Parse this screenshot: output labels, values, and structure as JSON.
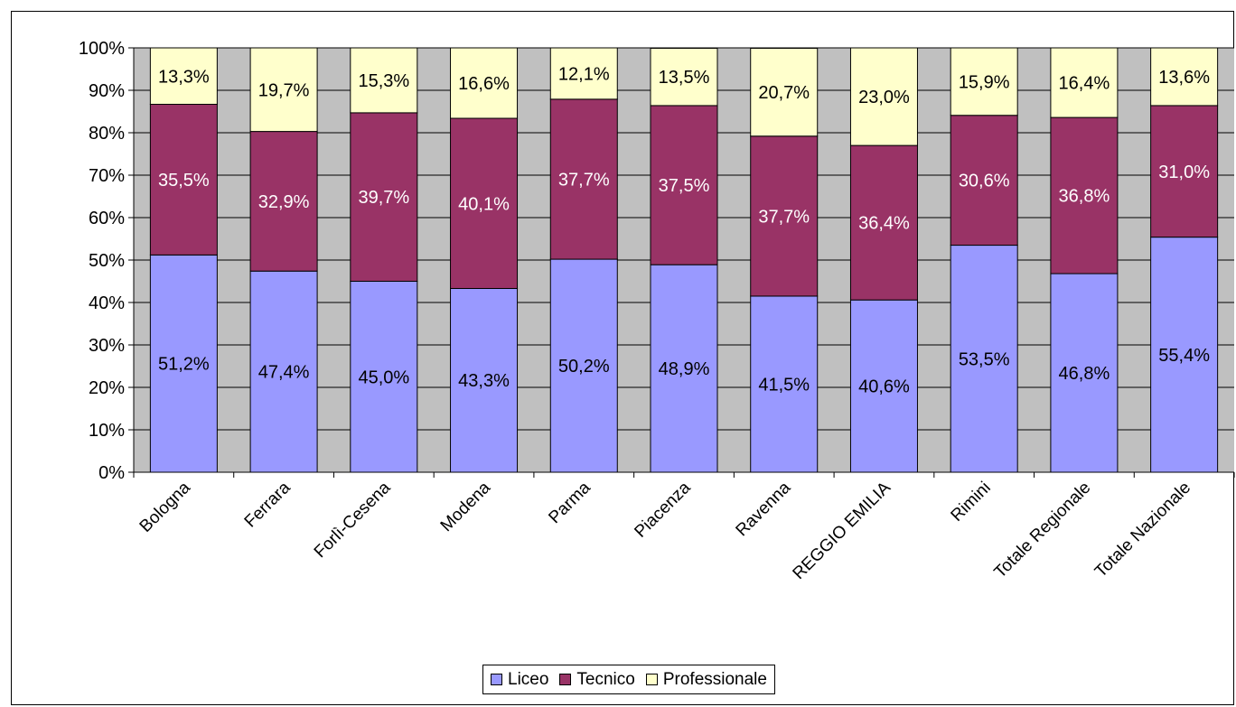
{
  "chart_data": {
    "type": "bar",
    "stacked": true,
    "percent_stacked": true,
    "categories": [
      "Bologna",
      "Ferrara",
      "Forlì-Cesena",
      "Modena",
      "Parma",
      "Piacenza",
      "Ravenna",
      "REGGIO EMILIA",
      "Rimini",
      "Totale Regionale",
      "Totale Nazionale"
    ],
    "series": [
      {
        "name": "Liceo",
        "color": "#9999ff",
        "label_color": "#000000",
        "values": [
          51.2,
          47.4,
          45.0,
          43.3,
          50.2,
          48.9,
          41.5,
          40.6,
          53.5,
          46.8,
          55.4
        ],
        "labels": [
          "51,2%",
          "47,4%",
          "45,0%",
          "43,3%",
          "50,2%",
          "48,9%",
          "41,5%",
          "40,6%",
          "53,5%",
          "46,8%",
          "55,4%"
        ]
      },
      {
        "name": "Tecnico",
        "color": "#993366",
        "label_color": "#ffffff",
        "values": [
          35.5,
          32.9,
          39.7,
          40.1,
          37.7,
          37.5,
          37.7,
          36.4,
          30.6,
          36.8,
          31.0
        ],
        "labels": [
          "35,5%",
          "32,9%",
          "39,7%",
          "40,1%",
          "37,7%",
          "37,5%",
          "37,7%",
          "36,4%",
          "30,6%",
          "36,8%",
          "31,0%"
        ]
      },
      {
        "name": "Professionale",
        "color": "#ffffcc",
        "label_color": "#000000",
        "values": [
          13.3,
          19.7,
          15.3,
          16.6,
          12.1,
          13.5,
          20.7,
          23.0,
          15.9,
          16.4,
          13.6
        ],
        "labels": [
          "13,3%",
          "19,7%",
          "15,3%",
          "16,6%",
          "12,1%",
          "13,5%",
          "20,7%",
          "23,0%",
          "15,9%",
          "16,4%",
          "13,6%"
        ]
      }
    ],
    "ylim": [
      0,
      100
    ],
    "yticks": [
      "0%",
      "10%",
      "20%",
      "30%",
      "40%",
      "50%",
      "60%",
      "70%",
      "80%",
      "90%",
      "100%"
    ],
    "grid": true,
    "plot_background": "#c0c0c0",
    "legend_position": "bottom",
    "title": "",
    "xlabel": "",
    "ylabel": ""
  }
}
